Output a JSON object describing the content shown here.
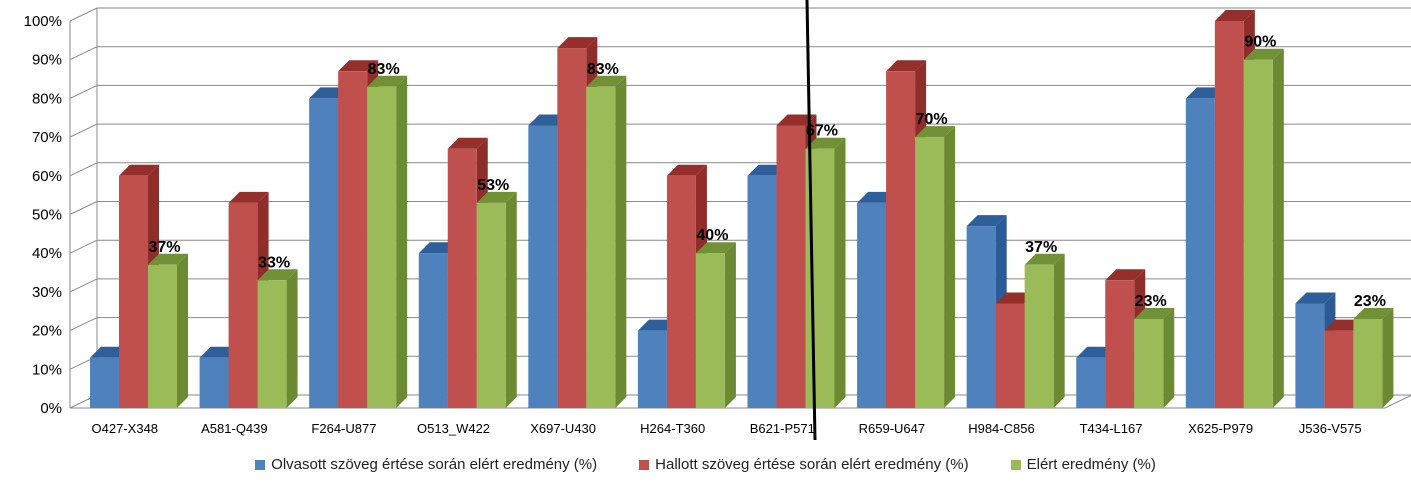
{
  "chart_data": {
    "type": "bar",
    "categories": [
      "O427-X348",
      "A581-Q439",
      "F264-U877",
      "O513_W422",
      "X697-U430",
      "H264-T360",
      "B621-P571",
      "R659-U647",
      "H984-C856",
      "T434-L167",
      "X625-P979",
      "J536-V575"
    ],
    "series": [
      {
        "name": "Olvasott szöveg értése során elért eredmény (%)",
        "color": "#4F81BD",
        "side": "#2C5A94",
        "values": [
          13,
          13,
          80,
          40,
          73,
          20,
          60,
          53,
          47,
          13,
          80,
          27
        ]
      },
      {
        "name": "Hallott szöveg értése során elért eredmény (%)",
        "color": "#C0504D",
        "side": "#8E2D2A",
        "values": [
          60,
          53,
          87,
          67,
          93,
          60,
          73,
          87,
          27,
          33,
          100,
          20
        ]
      },
      {
        "name": "Elért eredmény (%)",
        "color": "#9BBB59",
        "side": "#6B8A32",
        "values": [
          37,
          33,
          83,
          53,
          83,
          40,
          67,
          70,
          37,
          23,
          90,
          23
        ]
      }
    ],
    "data_labels": [
      "37%",
      "33%",
      "83%",
      "53%",
      "83%",
      "40%",
      "67%",
      "70%",
      "37%",
      "23%",
      "90%",
      "23%"
    ],
    "y_ticks": [
      "0%",
      "10%",
      "20%",
      "30%",
      "40%",
      "50%",
      "60%",
      "70%",
      "80%",
      "90%",
      "100%"
    ],
    "ylim": [
      0,
      100
    ],
    "grid": true,
    "legend_position": "bottom",
    "title": "",
    "xlabel": "",
    "ylabel": ""
  }
}
